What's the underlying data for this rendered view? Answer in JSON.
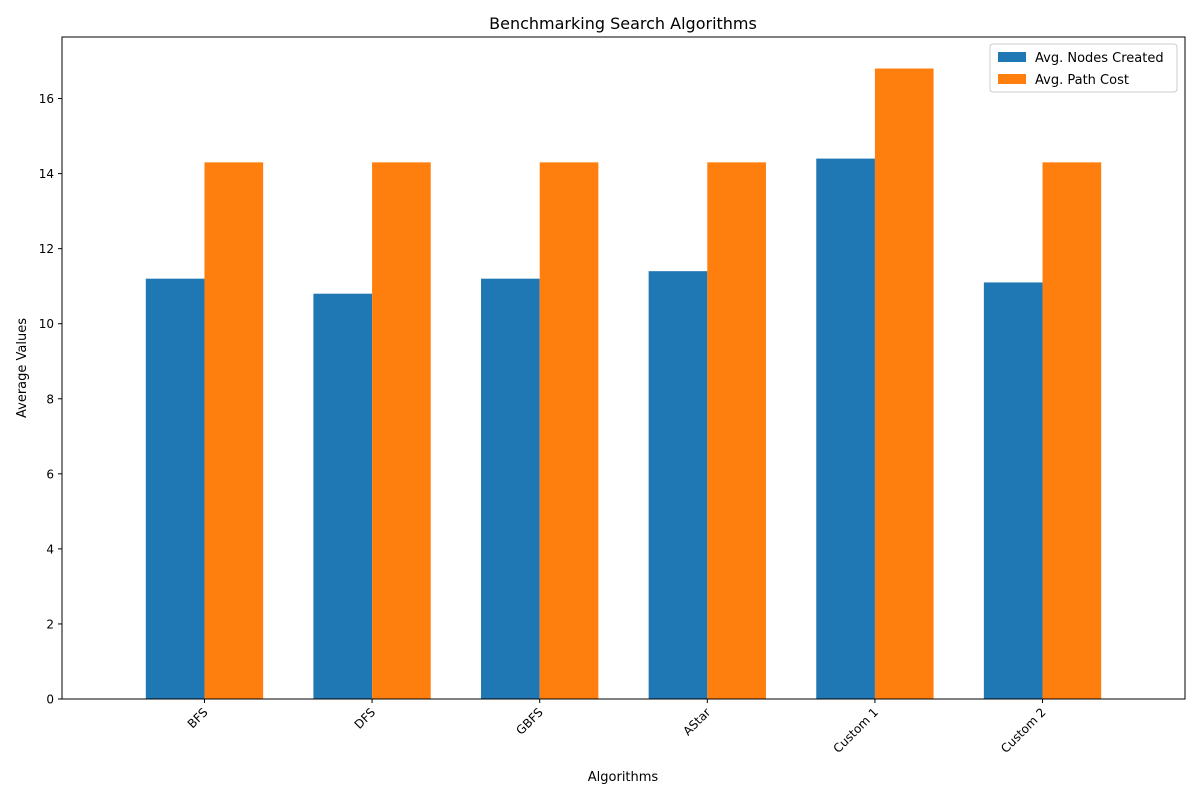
{
  "chart_data": {
    "type": "bar",
    "title": "Benchmarking Search Algorithms",
    "xlabel": "Algorithms",
    "ylabel": "Average Values",
    "categories": [
      "BFS",
      "DFS",
      "GBFS",
      "AStar",
      "Custom 1",
      "Custom 2"
    ],
    "series": [
      {
        "name": "Avg. Nodes Created",
        "values": [
          11.2,
          10.8,
          11.2,
          11.4,
          14.4,
          11.1
        ],
        "color": "#1f77b4"
      },
      {
        "name": "Avg. Path Cost",
        "values": [
          14.3,
          14.3,
          14.3,
          14.3,
          16.8,
          14.3
        ],
        "color": "#ff7f0e"
      }
    ],
    "ylim": [
      0,
      17.64
    ],
    "yticks": [
      0,
      2,
      4,
      6,
      8,
      10,
      12,
      14,
      16
    ],
    "grid": false,
    "legend_position": "top-right"
  }
}
